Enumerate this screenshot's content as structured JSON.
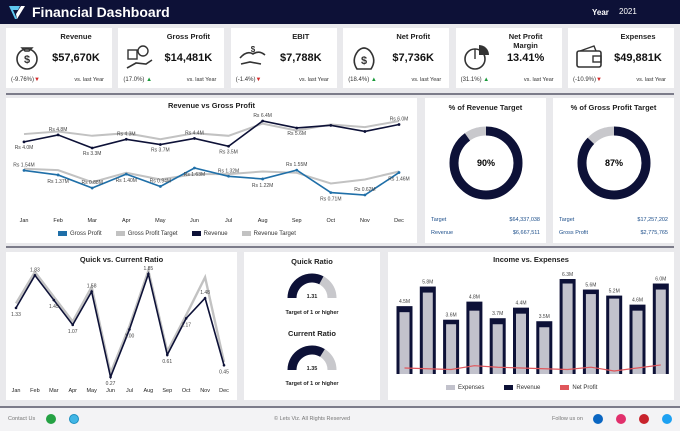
{
  "header": {
    "title": "Financial Dashboard",
    "year_label": "Year",
    "year_value": "2021"
  },
  "kpis": [
    {
      "title": "Revenue",
      "value": "$57,670K",
      "change": "(-9.76%)",
      "dir": "down",
      "vs": "vs. last Year",
      "icon": "money-bag-icon"
    },
    {
      "title": "Gross Profit",
      "value": "$14,481K",
      "change": "(17.0%)",
      "dir": "up",
      "vs": "vs. last Year",
      "icon": "hand-coins-icon"
    },
    {
      "title": "EBIT",
      "value": "$7,788K",
      "change": "(-1.4%)",
      "dir": "down",
      "vs": "vs. last Year",
      "icon": "hand-money-icon"
    },
    {
      "title": "Net Profit",
      "value": "$7,736K",
      "change": "(18.4%)",
      "dir": "up",
      "vs": "vs. last Year",
      "icon": "dollar-bag-icon"
    },
    {
      "title": "Net Profit Margin",
      "value": "13.41%",
      "change": "(31.1%)",
      "dir": "up",
      "vs": "vs. last Year",
      "icon": "pie-chart-icon"
    },
    {
      "title": "Expenses",
      "value": "$49,881K",
      "change": "(-10.9%)",
      "dir": "down",
      "vs": "vs. last Year",
      "icon": "wallet-icon"
    }
  ],
  "rev_gp_chart": {
    "title": "Revenue vs Gross Profit",
    "legend": {
      "gp": "Gross Profit",
      "gpt": "Gross Profit Target",
      "rev": "Revenue",
      "revt": "Revenue Target"
    },
    "colors": {
      "gp": "#1f6fa8",
      "gpt": "#c2c2c2",
      "rev": "#0d1137",
      "revt": "#c2c2c2"
    }
  },
  "revenue_target": {
    "title": "% of Revenue Target",
    "percent": 90,
    "percent_label": "90%",
    "target_label": "Target",
    "target_value": "$64,337,038",
    "actual_label": "Revenue",
    "actual_value": "$6,667,511"
  },
  "gp_target": {
    "title": "% of Gross Profit Target",
    "percent": 87,
    "percent_label": "87%",
    "target_label": "Target",
    "target_value": "$17,257,202",
    "actual_label": "Gross Profit",
    "actual_value": "$2,775,765"
  },
  "ratio_chart": {
    "title": "Quick vs. Current Ratio"
  },
  "quick_ratio": {
    "title": "Quick Ratio",
    "value": 1.31,
    "value_label": "1.31",
    "target": "Target of 1 or higher"
  },
  "current_ratio": {
    "title": "Current Ratio",
    "value": 1.35,
    "value_label": "1.35",
    "target": "Target of 1 or higher"
  },
  "income_chart": {
    "title": "Income vs. Expenses",
    "legend": {
      "exp": "Expenses",
      "rev": "Revenue",
      "np": "Net Profit"
    },
    "colors": {
      "exp": "#c2c2cc",
      "rev": "#0d1137",
      "np": "#e0565b"
    }
  },
  "footer": {
    "contact": "Contact Us",
    "copyright": "© Lets Viz. All Rights Reserved",
    "follow": "Follow us on"
  },
  "chart_data": [
    {
      "type": "line",
      "title": "Revenue vs Gross Profit",
      "categories": [
        "Jan",
        "Feb",
        "Mar",
        "Apr",
        "May",
        "Jun",
        "Jul",
        "Aug",
        "Sep",
        "Oct",
        "Nov",
        "Dec"
      ],
      "series": [
        {
          "name": "Revenue",
          "values": [
            4.0,
            4.8,
            3.3,
            4.3,
            3.7,
            4.4,
            3.5,
            6.4,
            5.6,
            5.9,
            5.2,
            6.0
          ],
          "labels": [
            "Rs 4.0M",
            "Rs 4.8M",
            "Rs 3.3M",
            "Rs 4.3M",
            "Rs 3.7M",
            "Rs 4.4M",
            "Rs 3.5M",
            "Rs 6.4M",
            "Rs 5.6M",
            "",
            "",
            "Rs 6.0M"
          ]
        },
        {
          "name": "Revenue Target",
          "values": [
            4.9,
            5.2,
            4.7,
            5.0,
            4.3,
            5.0,
            4.7,
            6.1,
            5.3,
            6.0,
            5.7,
            6.4
          ],
          "labels": []
        },
        {
          "name": "Gross Profit",
          "values": [
            1.54,
            1.37,
            0.88,
            1.4,
            0.94,
            1.63,
            1.32,
            1.22,
            1.55,
            0.71,
            0.62,
            1.46
          ],
          "labels": [
            "Rs 1.54M",
            "Rs 1.37M",
            "Rs 0.88M",
            "Rs 1.40M",
            "Rs 0.94M",
            "Rs 1.63M",
            "Rs 1.32M",
            "Rs 1.22M",
            "Rs 1.55M",
            "Rs 0.71M",
            "Rs 0.62M",
            "Rs 1.46M"
          ]
        },
        {
          "name": "Gross Profit Target",
          "values": [
            1.6,
            1.55,
            1.1,
            1.45,
            1.2,
            1.4,
            1.4,
            1.5,
            1.45,
            1.05,
            1.2,
            1.5
          ],
          "labels": []
        }
      ]
    },
    {
      "type": "line",
      "title": "Quick vs. Current Ratio",
      "categories": [
        "Jan",
        "Feb",
        "Mar",
        "Apr",
        "May",
        "Jun",
        "Jul",
        "Aug",
        "Sep",
        "Oct",
        "Nov",
        "Dec"
      ],
      "series": [
        {
          "name": "Quick Ratio",
          "values": [
            1.33,
            1.83,
            1.45,
            1.07,
            1.58,
            0.27,
            1.0,
            1.85,
            0.61,
            1.17,
            1.48,
            0.45
          ],
          "labels": [
            "1.33",
            "1.83",
            "1.45",
            "1.07",
            "1.58",
            "0.27",
            "1.00",
            "1.85",
            "0.61",
            "1.17",
            "1.48",
            "0.45"
          ]
        },
        {
          "name": "Current Ratio",
          "values": [
            1.4,
            1.88,
            1.5,
            1.12,
            1.65,
            0.33,
            1.05,
            1.9,
            0.66,
            1.22,
            1.8,
            0.5
          ],
          "labels": []
        }
      ]
    },
    {
      "type": "bar",
      "title": "Income vs. Expenses",
      "categories": [
        "",
        "",
        "",
        "",
        "",
        "",
        "",
        "",
        "",
        "",
        "",
        ""
      ],
      "series": [
        {
          "name": "Expenses",
          "values": [
            4.1,
            5.4,
            3.3,
            4.2,
            3.3,
            4.0,
            3.1,
            6.0,
            5.3,
            5.0,
            4.2,
            5.6
          ]
        },
        {
          "name": "Revenue",
          "values": [
            4.5,
            5.8,
            3.6,
            4.8,
            3.7,
            4.4,
            3.5,
            6.3,
            5.6,
            5.2,
            4.6,
            6.0
          ],
          "labels": [
            "4.5M",
            "5.8M",
            "3.6M",
            "4.8M",
            "3.7M",
            "4.4M",
            "3.5M",
            "6.3M",
            "5.6M",
            "5.2M",
            "4.6M",
            "6.0M"
          ]
        },
        {
          "name": "Net Profit",
          "values": [
            0.4,
            0.35,
            0.3,
            0.55,
            0.45,
            0.4,
            0.35,
            0.3,
            0.45,
            0.2,
            0.4,
            0.6
          ]
        }
      ]
    }
  ]
}
